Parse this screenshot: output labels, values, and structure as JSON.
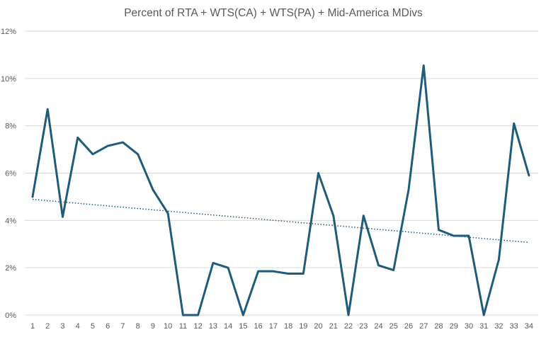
{
  "chart_data": {
    "type": "line",
    "title": "Percent of RTA + WTS(CA) + WTS(PA) + Mid-America MDivs",
    "x": [
      1,
      2,
      3,
      4,
      5,
      6,
      7,
      8,
      9,
      10,
      11,
      12,
      13,
      14,
      15,
      16,
      17,
      18,
      19,
      20,
      21,
      22,
      23,
      24,
      25,
      26,
      27,
      28,
      29,
      30,
      31,
      32,
      33,
      34
    ],
    "series": [
      {
        "values": [
          5.0,
          8.7,
          4.15,
          7.5,
          6.8,
          7.15,
          7.3,
          6.8,
          5.3,
          4.3,
          0,
          0,
          2.2,
          2.0,
          0,
          1.85,
          1.85,
          1.75,
          1.75,
          6.0,
          4.2,
          0,
          4.2,
          2.1,
          1.9,
          5.3,
          10.55,
          3.6,
          3.35,
          3.35,
          0,
          2.35,
          8.1,
          5.9
        ],
        "color": "#1f5c7a"
      }
    ],
    "trendline": {
      "type": "linear",
      "style": "dotted",
      "color": "#1f5c7a"
    },
    "y_ticks": [
      "0%",
      "2%",
      "4%",
      "6%",
      "8%",
      "10%",
      "12%"
    ],
    "ylim": [
      0,
      12
    ],
    "xlabel": "",
    "ylabel": "",
    "grid": true,
    "legend": "none"
  }
}
